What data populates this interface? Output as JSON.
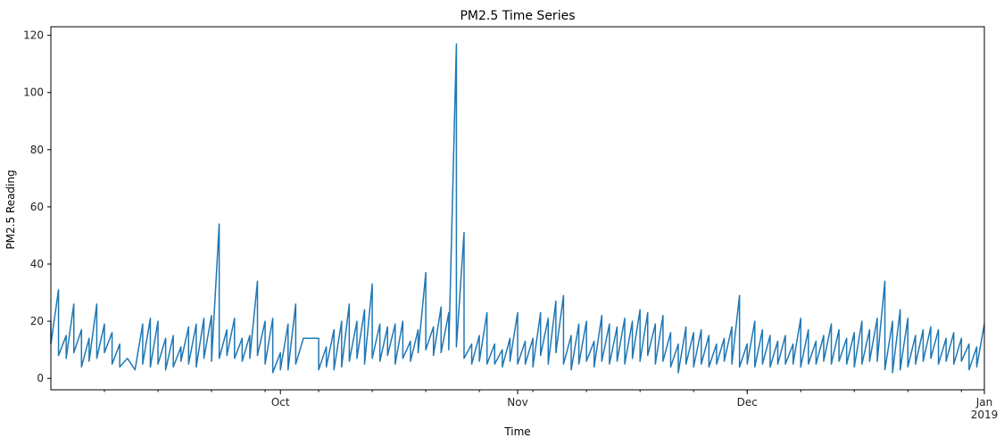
{
  "chart_data": {
    "type": "line",
    "title": "PM2.5 Time Series",
    "xlabel": "Time",
    "ylabel": "PM2.5 Reading",
    "x_range": [
      "2018-09-01",
      "2019-01-01"
    ],
    "ylim": [
      -4,
      123
    ],
    "grid": false,
    "line_color": "#1f77b4",
    "y_ticks": [
      {
        "value": 0,
        "label": "0"
      },
      {
        "value": 20,
        "label": "20"
      },
      {
        "value": 40,
        "label": "40"
      },
      {
        "value": 60,
        "label": "60"
      },
      {
        "value": 80,
        "label": "80"
      },
      {
        "value": 100,
        "label": "100"
      },
      {
        "value": 120,
        "label": "120"
      }
    ],
    "x_major_ticks": [
      {
        "date": "2018-10-01",
        "label": "Oct"
      },
      {
        "date": "2018-11-01",
        "label": "Nov"
      },
      {
        "date": "2018-12-01",
        "label": "Dec"
      },
      {
        "date": "2019-01-01",
        "label": "Jan",
        "label2": "2019"
      }
    ],
    "x_minor_tick_interval_days": 7,
    "series": [
      {
        "points": [
          [
            "2018-09-01",
            20
          ],
          [
            "2018-09-01",
            12
          ],
          [
            "2018-09-02",
            31
          ],
          [
            "2018-09-02",
            8
          ],
          [
            "2018-09-03",
            15
          ],
          [
            "2018-09-03",
            7
          ],
          [
            "2018-09-04",
            26
          ],
          [
            "2018-09-04",
            9
          ],
          [
            "2018-09-05",
            17
          ],
          [
            "2018-09-05",
            4
          ],
          [
            "2018-09-06",
            14
          ],
          [
            "2018-09-06",
            6
          ],
          [
            "2018-09-07",
            26
          ],
          [
            "2018-09-07",
            7
          ],
          [
            "2018-09-08",
            19
          ],
          [
            "2018-09-08",
            9
          ],
          [
            "2018-09-09",
            16
          ],
          [
            "2018-09-09",
            5
          ],
          [
            "2018-09-10",
            12
          ],
          [
            "2018-09-10",
            4
          ],
          [
            "2018-09-11",
            7
          ],
          [
            "2018-09-12",
            3
          ],
          [
            "2018-09-13",
            19
          ],
          [
            "2018-09-13",
            5
          ],
          [
            "2018-09-14",
            21
          ],
          [
            "2018-09-14",
            4
          ],
          [
            "2018-09-15",
            20
          ],
          [
            "2018-09-15",
            5
          ],
          [
            "2018-09-16",
            14
          ],
          [
            "2018-09-16",
            3
          ],
          [
            "2018-09-17",
            15
          ],
          [
            "2018-09-17",
            4
          ],
          [
            "2018-09-18",
            11
          ],
          [
            "2018-09-18",
            6
          ],
          [
            "2018-09-19",
            18
          ],
          [
            "2018-09-19",
            5
          ],
          [
            "2018-09-20",
            19
          ],
          [
            "2018-09-20",
            4
          ],
          [
            "2018-09-21",
            21
          ],
          [
            "2018-09-21",
            7
          ],
          [
            "2018-09-22",
            22
          ],
          [
            "2018-09-22",
            6
          ],
          [
            "2018-09-23",
            54
          ],
          [
            "2018-09-23",
            7
          ],
          [
            "2018-09-24",
            17
          ],
          [
            "2018-09-24",
            8
          ],
          [
            "2018-09-25",
            21
          ],
          [
            "2018-09-25",
            7
          ],
          [
            "2018-09-26",
            14
          ],
          [
            "2018-09-26",
            6
          ],
          [
            "2018-09-27",
            15
          ],
          [
            "2018-09-27",
            7
          ],
          [
            "2018-09-28",
            34
          ],
          [
            "2018-09-28",
            8
          ],
          [
            "2018-09-29",
            20
          ],
          [
            "2018-09-29",
            5
          ],
          [
            "2018-09-30",
            21
          ],
          [
            "2018-09-30",
            2
          ],
          [
            "2018-10-01",
            9
          ],
          [
            "2018-10-01",
            3
          ],
          [
            "2018-10-02",
            19
          ],
          [
            "2018-10-02",
            3
          ],
          [
            "2018-10-03",
            26
          ],
          [
            "2018-10-03",
            5
          ],
          [
            "2018-10-04",
            14
          ],
          [
            "2018-10-04",
            14
          ],
          [
            "2018-10-05",
            14
          ],
          [
            "2018-10-05",
            14
          ],
          [
            "2018-10-06",
            14
          ],
          [
            "2018-10-06",
            3
          ],
          [
            "2018-10-07",
            11
          ],
          [
            "2018-10-07",
            4
          ],
          [
            "2018-10-08",
            17
          ],
          [
            "2018-10-08",
            3
          ],
          [
            "2018-10-09",
            20
          ],
          [
            "2018-10-09",
            4
          ],
          [
            "2018-10-10",
            26
          ],
          [
            "2018-10-10",
            6
          ],
          [
            "2018-10-11",
            20
          ],
          [
            "2018-10-11",
            7
          ],
          [
            "2018-10-12",
            24
          ],
          [
            "2018-10-12",
            5
          ],
          [
            "2018-10-13",
            33
          ],
          [
            "2018-10-13",
            7
          ],
          [
            "2018-10-14",
            19
          ],
          [
            "2018-10-14",
            6
          ],
          [
            "2018-10-15",
            18
          ],
          [
            "2018-10-15",
            8
          ],
          [
            "2018-10-16",
            19
          ],
          [
            "2018-10-16",
            5
          ],
          [
            "2018-10-17",
            20
          ],
          [
            "2018-10-17",
            7
          ],
          [
            "2018-10-18",
            13
          ],
          [
            "2018-10-18",
            6
          ],
          [
            "2018-10-19",
            17
          ],
          [
            "2018-10-19",
            9
          ],
          [
            "2018-10-20",
            37
          ],
          [
            "2018-10-20",
            10
          ],
          [
            "2018-10-21",
            18
          ],
          [
            "2018-10-21",
            8
          ],
          [
            "2018-10-22",
            25
          ],
          [
            "2018-10-22",
            9
          ],
          [
            "2018-10-23",
            23
          ],
          [
            "2018-10-23",
            10
          ],
          [
            "2018-10-24",
            117
          ],
          [
            "2018-10-24",
            11
          ],
          [
            "2018-10-25",
            51
          ],
          [
            "2018-10-25",
            7
          ],
          [
            "2018-10-26",
            12
          ],
          [
            "2018-10-26",
            5
          ],
          [
            "2018-10-27",
            15
          ],
          [
            "2018-10-27",
            6
          ],
          [
            "2018-10-28",
            23
          ],
          [
            "2018-10-28",
            5
          ],
          [
            "2018-10-29",
            12
          ],
          [
            "2018-10-29",
            5
          ],
          [
            "2018-10-30",
            10
          ],
          [
            "2018-10-30",
            4
          ],
          [
            "2018-10-31",
            14
          ],
          [
            "2018-10-31",
            6
          ],
          [
            "2018-11-01",
            23
          ],
          [
            "2018-11-01",
            5
          ],
          [
            "2018-11-02",
            13
          ],
          [
            "2018-11-02",
            5
          ],
          [
            "2018-11-03",
            14
          ],
          [
            "2018-11-03",
            4
          ],
          [
            "2018-11-04",
            23
          ],
          [
            "2018-11-04",
            8
          ],
          [
            "2018-11-05",
            21
          ],
          [
            "2018-11-05",
            5
          ],
          [
            "2018-11-06",
            27
          ],
          [
            "2018-11-06",
            9
          ],
          [
            "2018-11-07",
            29
          ],
          [
            "2018-11-07",
            5
          ],
          [
            "2018-11-08",
            15
          ],
          [
            "2018-11-08",
            3
          ],
          [
            "2018-11-09",
            19
          ],
          [
            "2018-11-09",
            5
          ],
          [
            "2018-11-10",
            20
          ],
          [
            "2018-11-10",
            6
          ],
          [
            "2018-11-11",
            13
          ],
          [
            "2018-11-11",
            4
          ],
          [
            "2018-11-12",
            22
          ],
          [
            "2018-11-12",
            6
          ],
          [
            "2018-11-13",
            19
          ],
          [
            "2018-11-13",
            5
          ],
          [
            "2018-11-14",
            18
          ],
          [
            "2018-11-14",
            6
          ],
          [
            "2018-11-15",
            21
          ],
          [
            "2018-11-15",
            5
          ],
          [
            "2018-11-16",
            20
          ],
          [
            "2018-11-16",
            7
          ],
          [
            "2018-11-17",
            24
          ],
          [
            "2018-11-17",
            6
          ],
          [
            "2018-11-18",
            23
          ],
          [
            "2018-11-18",
            8
          ],
          [
            "2018-11-19",
            19
          ],
          [
            "2018-11-19",
            5
          ],
          [
            "2018-11-20",
            22
          ],
          [
            "2018-11-20",
            6
          ],
          [
            "2018-11-21",
            16
          ],
          [
            "2018-11-21",
            4
          ],
          [
            "2018-11-22",
            12
          ],
          [
            "2018-11-22",
            2
          ],
          [
            "2018-11-23",
            18
          ],
          [
            "2018-11-23",
            5
          ],
          [
            "2018-11-24",
            16
          ],
          [
            "2018-11-24",
            4
          ],
          [
            "2018-11-25",
            17
          ],
          [
            "2018-11-25",
            5
          ],
          [
            "2018-11-26",
            15
          ],
          [
            "2018-11-26",
            4
          ],
          [
            "2018-11-27",
            12
          ],
          [
            "2018-11-27",
            5
          ],
          [
            "2018-11-28",
            14
          ],
          [
            "2018-11-28",
            6
          ],
          [
            "2018-11-29",
            18
          ],
          [
            "2018-11-29",
            5
          ],
          [
            "2018-11-30",
            29
          ],
          [
            "2018-11-30",
            4
          ],
          [
            "2018-12-01",
            12
          ],
          [
            "2018-12-01",
            5
          ],
          [
            "2018-12-02",
            20
          ],
          [
            "2018-12-02",
            4
          ],
          [
            "2018-12-03",
            17
          ],
          [
            "2018-12-03",
            5
          ],
          [
            "2018-12-04",
            15
          ],
          [
            "2018-12-04",
            4
          ],
          [
            "2018-12-05",
            13
          ],
          [
            "2018-12-05",
            5
          ],
          [
            "2018-12-06",
            15
          ],
          [
            "2018-12-06",
            5
          ],
          [
            "2018-12-07",
            12
          ],
          [
            "2018-12-07",
            5
          ],
          [
            "2018-12-08",
            21
          ],
          [
            "2018-12-08",
            4
          ],
          [
            "2018-12-09",
            17
          ],
          [
            "2018-12-09",
            5
          ],
          [
            "2018-12-10",
            13
          ],
          [
            "2018-12-10",
            5
          ],
          [
            "2018-12-11",
            15
          ],
          [
            "2018-12-11",
            6
          ],
          [
            "2018-12-12",
            19
          ],
          [
            "2018-12-12",
            5
          ],
          [
            "2018-12-13",
            17
          ],
          [
            "2018-12-13",
            6
          ],
          [
            "2018-12-14",
            14
          ],
          [
            "2018-12-14",
            5
          ],
          [
            "2018-12-15",
            16
          ],
          [
            "2018-12-15",
            4
          ],
          [
            "2018-12-16",
            20
          ],
          [
            "2018-12-16",
            5
          ],
          [
            "2018-12-17",
            17
          ],
          [
            "2018-12-17",
            6
          ],
          [
            "2018-12-18",
            21
          ],
          [
            "2018-12-18",
            6
          ],
          [
            "2018-12-19",
            34
          ],
          [
            "2018-12-19",
            3
          ],
          [
            "2018-12-20",
            20
          ],
          [
            "2018-12-20",
            2
          ],
          [
            "2018-12-21",
            24
          ],
          [
            "2018-12-21",
            3
          ],
          [
            "2018-12-22",
            21
          ],
          [
            "2018-12-22",
            4
          ],
          [
            "2018-12-23",
            15
          ],
          [
            "2018-12-23",
            5
          ],
          [
            "2018-12-24",
            17
          ],
          [
            "2018-12-24",
            6
          ],
          [
            "2018-12-25",
            18
          ],
          [
            "2018-12-25",
            7
          ],
          [
            "2018-12-26",
            17
          ],
          [
            "2018-12-26",
            5
          ],
          [
            "2018-12-27",
            14
          ],
          [
            "2018-12-27",
            6
          ],
          [
            "2018-12-28",
            16
          ],
          [
            "2018-12-28",
            5
          ],
          [
            "2018-12-29",
            14
          ],
          [
            "2018-12-29",
            6
          ],
          [
            "2018-12-30",
            12
          ],
          [
            "2018-12-30",
            3
          ],
          [
            "2018-12-31",
            11
          ],
          [
            "2018-12-31",
            4
          ],
          [
            "2019-01-01",
            19
          ]
        ]
      }
    ]
  }
}
